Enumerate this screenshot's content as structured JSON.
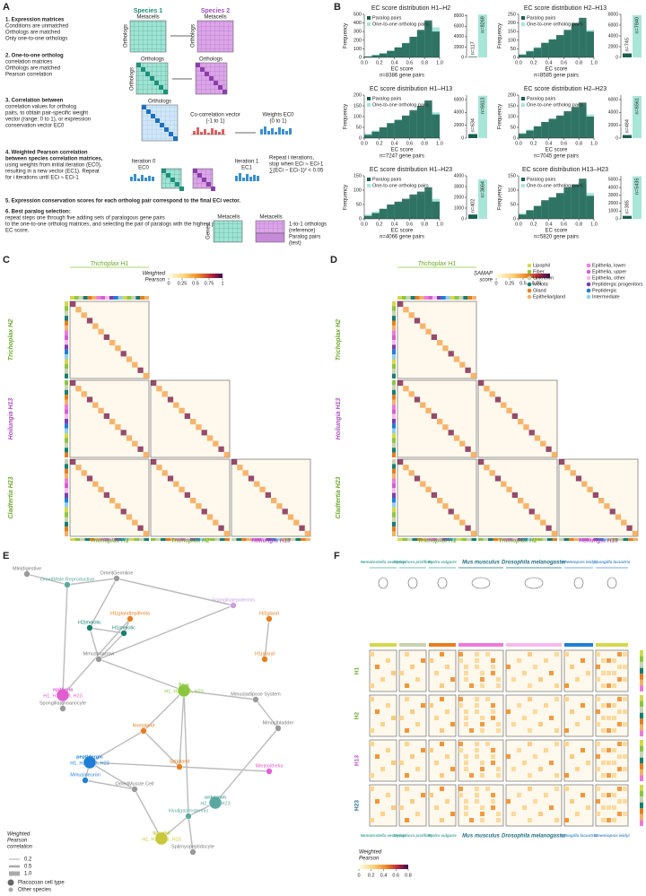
{
  "panels": {
    "a": {
      "label": "A",
      "species1": "Species 1",
      "species2": "Species 2",
      "metacells": "Metacells",
      "orthologs": "Orthologs",
      "genes": "Genes",
      "covec": "Co-correlation vector",
      "covec_range": "(-1 to 1)",
      "weights": "Weights EC0",
      "weights_range": "(0 to 1)",
      "iter0": "Iteration 0",
      "iter1": "Iteration 1",
      "ec0": "EC0",
      "ec1": "EC1",
      "repeat": [
        "Repeat i iterations,",
        "stop when ECi ≈ ECi-1",
        "∑(ECi − ECi-1)² < 0.05"
      ],
      "ref": [
        "1-to-1 orthologs",
        "(reference)"
      ],
      "test": [
        "Paralog pairs",
        "(test)"
      ],
      "steps": [
        {
          "title": "1. Expression matrices",
          "lines": [
            "Conditions are unmatched",
            "Orthologs are matched",
            "Only one-to-one orthologs"
          ]
        },
        {
          "title": "2. One-to-one ortholog",
          "lines": [
            "correlation matrices",
            "Orthologs are matched",
            "Pearson correlation"
          ]
        },
        {
          "title": "3. Correlation between",
          "lines": [
            "correlation values for ortholog",
            "pairs, to obtain pair-specific weight",
            "vector (range: 0 to 1), or expression",
            "conservation vector EC0"
          ]
        },
        {
          "title": "4. Weighted Pearson correlation",
          "lines": [
            "between species correlation matrices,",
            "using weights from initial iteration (EC0),",
            "resulting in a new vector (EC1). Repeat",
            "for i iterations until ECi ≈ ECi-1"
          ]
        },
        {
          "title": "5. Expression conservation scores for each ortholog pair correspond to the final ECi vector.",
          "lines": []
        },
        {
          "title": "6. Best paralog selection:",
          "lines": [
            "repeat steps one through five adding sets of paralogous gene pairs",
            "to the one-to-one ortholog matrices, and selecting the pair of paralogs with the highest pairwise",
            "EC score."
          ]
        }
      ]
    },
    "b": {
      "label": "B"
    },
    "c": {
      "label": "C",
      "top": "Trichoplax H1",
      "rows": [
        "Trichoplax H2",
        "Hoilungia H13",
        "Cladtertia H23"
      ],
      "cols": [
        "Trichoplax H1",
        "Trichoplax H2",
        "Hoilungia H13"
      ],
      "colorbar": {
        "title": [
          "Weighted",
          "Pearson"
        ],
        "lim": [
          0,
          1
        ],
        "ticks": [
          0,
          0.25,
          0.5,
          0.75,
          1
        ]
      }
    },
    "d": {
      "label": "D",
      "top": "Trichoplax H1",
      "rows": [
        "Trichoplax H2",
        "Hoilungia H13",
        "Cladtertia H23"
      ],
      "cols": [
        "Trichoplax H1",
        "Trichoplax H2",
        "Hoilungia H13"
      ],
      "colorbar": {
        "title": [
          "SAMAP",
          "score"
        ],
        "lim": [
          0,
          1
        ],
        "ticks": [
          0,
          0.25,
          0.5,
          0.75
        ]
      },
      "legend": [
        {
          "name": "Lipophil",
          "color": "#d4d84a"
        },
        {
          "name": "Fiber",
          "color": "#8cc63f"
        },
        {
          "name": "Unknown",
          "color": "#c9d3b0"
        },
        {
          "name": "Meiotic",
          "color": "#14806e"
        },
        {
          "name": "Gland",
          "color": "#e87d1e"
        },
        {
          "name": "Epithelia/gland",
          "color": "#f2b266"
        },
        {
          "name": "Epithelia, lower",
          "color": "#f07ad8"
        },
        {
          "name": "Epithelia, upper",
          "color": "#d55fd0"
        },
        {
          "name": "Epithelia, other",
          "color": "#f6b9ec"
        },
        {
          "name": "Peptidergic progenitors",
          "color": "#7a3fb0"
        },
        {
          "name": "Peptidergic",
          "color": "#1e7fd5"
        },
        {
          "name": "Intermediate",
          "color": "#8fd0ee"
        }
      ]
    },
    "e": {
      "label": "E",
      "legend_title": [
        "Weighted",
        "Pearson",
        "correlation"
      ],
      "widths": [
        0.2,
        0.5,
        {
          "value": 1,
          "label": "1.0"
        }
      ],
      "node_types": [
        "Placozoan cell type",
        "Other species"
      ],
      "nodes": [
        {
          "lines": [
            "Mle|digestive"
          ],
          "color": "#999"
        },
        {
          "lines": [
            "Omel|Male Reproductive"
          ],
          "color": "#5aa9a0"
        },
        {
          "lines": [
            "Omel|Germline"
          ],
          "color": "#999"
        },
        {
          "lines": [
            "H1|gland|epithelia"
          ],
          "color": "#e87d1e"
        },
        {
          "lines": [
            "H2|meiotic"
          ],
          "color": "#14806e"
        },
        {
          "lines": [
            "H1|meiotic"
          ],
          "color": "#14806e"
        },
        {
          "lines": [
            "Mmus|marrow"
          ],
          "color": "#999"
        },
        {
          "lines": [
            "Spongilla|choanocyte"
          ],
          "color": "#999"
        },
        {
          "lines": [
            "H2|gland"
          ],
          "color": "#e87d1e"
        },
        {
          "lines": [
            "H1|gland"
          ],
          "color": "#e87d1e"
        },
        {
          "lines": [
            "Spongilla|epidermis"
          ],
          "color": "#c9a0dc"
        },
        {
          "lines": [
            "epithelia",
            "H1, H2, H13, H23"
          ],
          "color": "#e05fd0"
        },
        {
          "lines": [
            "fiber",
            "H1, H2, H13, H23"
          ],
          "color": "#8cc63f"
        },
        {
          "lines": [
            "peptidergic",
            "H1, H2, H13, H23"
          ],
          "color": "#1e7fd5"
        },
        {
          "lines": [
            "Nve|gland"
          ],
          "color": "#e87d1e"
        },
        {
          "lines": [
            "Spl|gland"
          ],
          "color": "#e87d1e"
        },
        {
          "lines": [
            "Mmus|bladder"
          ],
          "color": "#999"
        },
        {
          "lines": [
            "Mle|epithelia"
          ],
          "color": "#e05fd0"
        },
        {
          "lines": [
            "unknown",
            "H2, H13, H23"
          ],
          "color": "#5aa9a0"
        },
        {
          "lines": [
            "lipophil",
            "H1, H2, H13, H23"
          ],
          "color": "#c8c83a"
        },
        {
          "lines": [
            "Omel|Muscle Cell"
          ],
          "color": "#999"
        },
        {
          "lines": [
            "Hvul|gastrodermis"
          ],
          "color": "#5aa9a0"
        },
        {
          "lines": [
            "Mmus|neuron"
          ],
          "color": "#1e7fd5"
        },
        {
          "lines": [
            "Spl|myopeptidocyte"
          ],
          "color": "#999"
        },
        {
          "lines": [
            "Mmus|adipose System"
          ],
          "color": "#999"
        }
      ]
    },
    "f": {
      "label": "F",
      "species": [
        "Nematostella vectensis",
        "Stylophora pistillata",
        "Hydra vulgaris",
        "Mus musculus",
        "Drosophila melanogaster",
        "Mnemiopsis leidyi",
        "Spongilla lacustris"
      ],
      "bottom_species": [
        "Nematostella vectensis",
        "Stylophora pistillata",
        "Hydra vulgaris",
        "Mus musculus",
        "Drosophila melanogaster",
        "Spongilla lacustris",
        "Mnemiopsis leidyi"
      ],
      "rows": [
        "H1",
        "H2",
        "H13",
        "H23"
      ],
      "colorbar": {
        "title": [
          "Weighted",
          "Pearson"
        ],
        "lim": [
          0,
          0.8
        ],
        "ticks": [
          0,
          0.2,
          0.4,
          0.6,
          0.8
        ]
      }
    }
  },
  "chart_data": [
    {
      "type": "histogram",
      "title": "EC score distribution H1–H2",
      "subtitle": "n=8386 gene pairs",
      "xlabel": "EC score",
      "ylabel": "Frequency",
      "bins": [
        0,
        0.1,
        0.2,
        0.3,
        0.4,
        0.5,
        0.6,
        0.7,
        0.8,
        0.9,
        1
      ],
      "series": [
        {
          "name": "Paralog pairs",
          "color": "#1a5e50",
          "values": [
            10,
            25,
            45,
            75,
            115,
            165,
            240,
            320,
            430,
            300
          ]
        },
        {
          "name": "One-to-one ortholog pairs",
          "color": "#a8e6d8",
          "values": [
            15,
            30,
            50,
            80,
            120,
            170,
            230,
            300,
            400,
            350
          ]
        }
      ],
      "xlim": [
        0,
        1
      ],
      "xticks": [
        {
          "value": 0,
          "label": "0.0"
        },
        0.2,
        0.4,
        0.6,
        0.8,
        {
          "value": 1,
          "label": "1.0"
        }
      ],
      "ylim": [
        0,
        500
      ],
      "yticks": [
        0,
        100,
        200,
        300,
        400,
        500
      ],
      "totals": {
        "values": [
          117,
          8269
        ],
        "value_labels": [
          "n=117",
          "n=8269"
        ],
        "ylim": [
          0,
          8300
        ],
        "yticks": [
          0,
          2000,
          4000,
          6000,
          8000
        ]
      }
    },
    {
      "type": "histogram",
      "title": "EC score distribution H2–H13",
      "subtitle": "n=8585 gene pairs",
      "xlabel": "EC score",
      "ylabel": "Frequency",
      "bins": [
        0,
        0.1,
        0.2,
        0.3,
        0.4,
        0.5,
        0.6,
        0.7,
        0.8,
        0.9,
        1
      ],
      "series": [
        {
          "name": "Paralog pairs",
          "color": "#1a5e50",
          "values": [
            15,
            35,
            55,
            85,
            105,
            130,
            160,
            200,
            230,
            150
          ]
        },
        {
          "name": "One-to-one ortholog pairs",
          "color": "#a8e6d8",
          "values": [
            20,
            40,
            60,
            80,
            100,
            120,
            150,
            180,
            210,
            160
          ]
        }
      ],
      "xlim": [
        0,
        1
      ],
      "xticks": [
        {
          "value": 0,
          "label": "0.0"
        },
        0.2,
        0.4,
        0.6,
        0.8,
        {
          "value": 1,
          "label": "1.0"
        }
      ],
      "ylim": [
        0,
        250
      ],
      "yticks": [
        0,
        50,
        100,
        150,
        200,
        250
      ],
      "totals": {
        "values": [
          745,
          7840
        ],
        "value_labels": [
          "n=745",
          "n=7840"
        ],
        "ylim": [
          0,
          8000
        ],
        "yticks": [
          0,
          2000,
          4000,
          6000,
          8000
        ]
      }
    },
    {
      "type": "histogram",
      "title": "EC score distribution H1–H13",
      "subtitle": "n=7247 gene pairs",
      "xlabel": "EC score",
      "ylabel": "Frequency",
      "bins": [
        0,
        0.1,
        0.2,
        0.3,
        0.4,
        0.5,
        0.6,
        0.7,
        0.8,
        0.9,
        1
      ],
      "series": [
        {
          "name": "Paralog pairs",
          "color": "#1a5e50",
          "values": [
            15,
            30,
            50,
            70,
            85,
            105,
            130,
            150,
            175,
            110
          ]
        },
        {
          "name": "One-to-one ortholog pairs",
          "color": "#a8e6d8",
          "values": [
            20,
            35,
            50,
            65,
            80,
            100,
            120,
            140,
            160,
            120
          ]
        }
      ],
      "xlim": [
        0,
        1
      ],
      "xticks": [
        {
          "value": 0,
          "label": "0.0"
        },
        0.2,
        0.4,
        0.6,
        0.8,
        {
          "value": 1,
          "label": "1.0"
        }
      ],
      "ylim": [
        0,
        200
      ],
      "yticks": [
        0,
        50,
        100,
        150,
        200
      ],
      "totals": {
        "values": [
          634,
          6613
        ],
        "value_labels": [
          "n=634",
          "n=6613"
        ],
        "ylim": [
          0,
          6700
        ],
        "yticks": [
          0,
          2000,
          4000,
          6000
        ]
      }
    },
    {
      "type": "histogram",
      "title": "EC score distribution H2–H23",
      "subtitle": "n=7045 gene pairs",
      "xlabel": "EC score",
      "ylabel": "Frequency",
      "bins": [
        0,
        0.1,
        0.2,
        0.3,
        0.4,
        0.5,
        0.6,
        0.7,
        0.8,
        0.9,
        1
      ],
      "series": [
        {
          "name": "Paralog pairs",
          "color": "#1a5e50",
          "values": [
            20,
            35,
            55,
            75,
            90,
            105,
            125,
            145,
            165,
            100
          ]
        },
        {
          "name": "One-to-one ortholog pairs",
          "color": "#a8e6d8",
          "values": [
            25,
            40,
            55,
            70,
            85,
            100,
            115,
            130,
            150,
            110
          ]
        }
      ],
      "xlim": [
        0,
        1
      ],
      "xticks": [
        {
          "value": 0,
          "label": "0.0"
        },
        0.2,
        0.4,
        0.6,
        0.8,
        {
          "value": 1,
          "label": "1.0"
        }
      ],
      "ylim": [
        0,
        200
      ],
      "yticks": [
        0,
        50,
        100,
        150,
        200
      ],
      "totals": {
        "values": [
          484,
          6561
        ],
        "value_labels": [
          "n=484",
          "n=6561"
        ],
        "ylim": [
          0,
          6700
        ],
        "yticks": [
          0,
          2000,
          4000,
          6000
        ]
      }
    },
    {
      "type": "histogram",
      "title": "EC score distribution H1–H23",
      "subtitle": "n=4066 gene pairs",
      "xlabel": "EC score",
      "ylabel": "Frequency",
      "bins": [
        0,
        0.1,
        0.2,
        0.3,
        0.4,
        0.5,
        0.6,
        0.7,
        0.8,
        0.9,
        1
      ],
      "series": [
        {
          "name": "Paralog pairs",
          "color": "#1a5e50",
          "values": [
            10,
            20,
            35,
            50,
            60,
            70,
            85,
            95,
            110,
            60
          ]
        },
        {
          "name": "One-to-one ortholog pairs",
          "color": "#a8e6d8",
          "values": [
            15,
            25,
            35,
            45,
            55,
            65,
            75,
            85,
            95,
            70
          ]
        }
      ],
      "xlim": [
        0,
        1
      ],
      "xticks": [
        {
          "value": 0,
          "label": "0.0"
        },
        0.2,
        0.4,
        0.6,
        0.8,
        {
          "value": 1,
          "label": "1.0"
        }
      ],
      "ylim": [
        0,
        150
      ],
      "yticks": [
        0,
        50,
        100,
        150
      ],
      "totals": {
        "values": [
          402,
          3664
        ],
        "value_labels": [
          "n=402",
          "n=3664"
        ],
        "ylim": [
          0,
          4000
        ],
        "yticks": [
          0,
          1000,
          2000,
          3000,
          4000
        ]
      }
    },
    {
      "type": "histogram",
      "title": "EC score distribution H13–H23",
      "subtitle": "n=5820 gene pairs",
      "xlabel": "EC score",
      "ylabel": "Frequency",
      "bins": [
        0,
        0.1,
        0.2,
        0.3,
        0.4,
        0.5,
        0.6,
        0.7,
        0.8,
        0.9,
        1
      ],
      "series": [
        {
          "name": "Paralog pairs",
          "color": "#1a5e50",
          "values": [
            15,
            30,
            45,
            65,
            75,
            90,
            110,
            120,
            140,
            80
          ]
        },
        {
          "name": "One-to-one ortholog pairs",
          "color": "#a8e6d8",
          "values": [
            20,
            30,
            45,
            60,
            70,
            85,
            100,
            110,
            125,
            90
          ]
        }
      ],
      "xlim": [
        0,
        1
      ],
      "xticks": [
        {
          "value": 0,
          "label": "0.0"
        },
        0.2,
        0.4,
        0.6,
        0.8,
        {
          "value": 1,
          "label": "1.0"
        }
      ],
      "ylim": [
        0,
        150
      ],
      "yticks": [
        0,
        50,
        100,
        150
      ],
      "totals": {
        "values": [
          385,
          5435
        ],
        "value_labels": [
          "n=385",
          "n=5435"
        ],
        "ylim": [
          0,
          5500
        ],
        "yticks": [
          0,
          1000,
          2000,
          3000,
          4000,
          5000
        ]
      }
    }
  ]
}
